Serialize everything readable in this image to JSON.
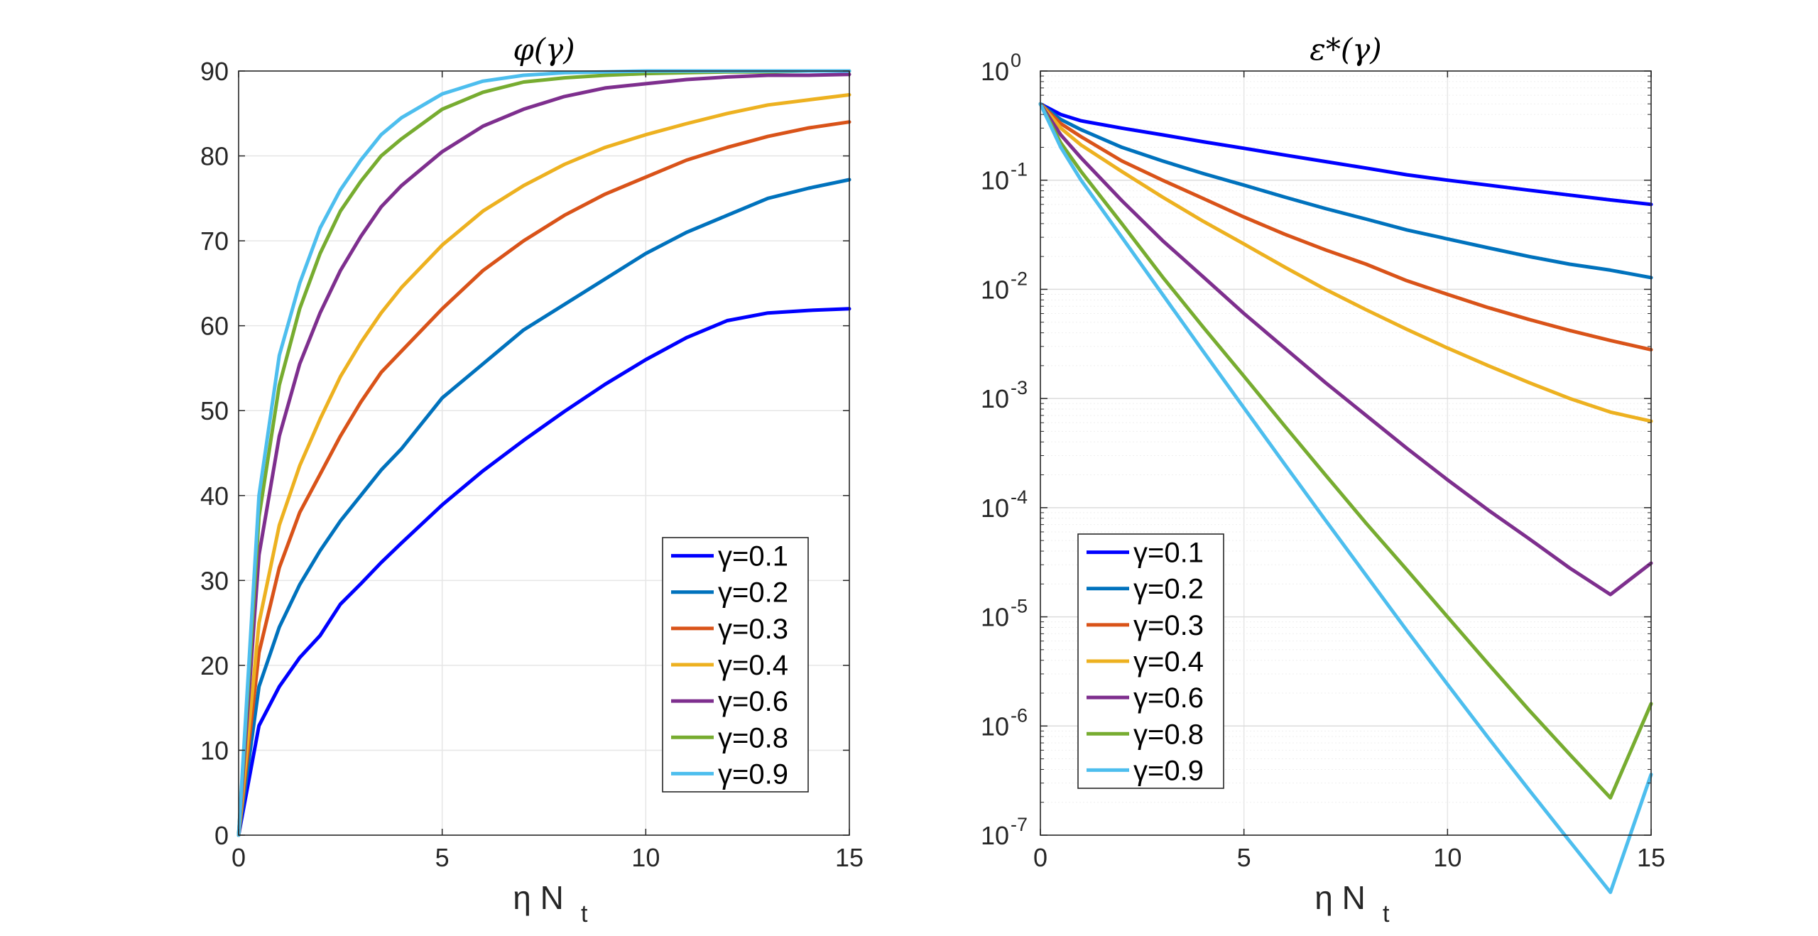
{
  "chart_data": [
    {
      "type": "line",
      "title": "φ(γ)",
      "xlabel": "η N",
      "xlabel_sub": "t",
      "ylabel": "",
      "xlim": [
        0,
        15
      ],
      "ylim": [
        0,
        90
      ],
      "yscale": "linear",
      "xticks": [
        0,
        5,
        10,
        15
      ],
      "yticks": [
        0,
        10,
        20,
        30,
        40,
        50,
        60,
        70,
        80,
        90
      ],
      "xtick_labels": [
        "0",
        "5",
        "10",
        "15"
      ],
      "ytick_labels": [
        "0",
        "10",
        "20",
        "30",
        "40",
        "50",
        "60",
        "70",
        "80",
        "90"
      ],
      "grid": true,
      "legend_position": "bottom-right",
      "x": [
        0,
        0.5,
        1,
        1.5,
        2,
        2.5,
        3,
        3.5,
        4,
        5,
        6,
        7,
        8,
        9,
        10,
        11,
        12,
        13,
        14,
        15
      ],
      "series": [
        {
          "name": "γ=0.1",
          "color": "#0000FF",
          "values": [
            0,
            12.9,
            17.5,
            20.9,
            23.5,
            27.2,
            29.6,
            32.1,
            34.4,
            38.9,
            42.9,
            46.5,
            49.9,
            53.1,
            56.0,
            58.6,
            60.6,
            61.5,
            61.8,
            62.0
          ]
        },
        {
          "name": "γ=0.2",
          "color": "#0072BD",
          "values": [
            0,
            17.5,
            24.5,
            29.5,
            33.5,
            37.0,
            40.0,
            43.0,
            45.5,
            51.5,
            55.5,
            59.5,
            62.5,
            65.5,
            68.5,
            71.0,
            73.0,
            75.0,
            76.2,
            77.2
          ]
        },
        {
          "name": "γ=0.3",
          "color": "#D95319",
          "values": [
            0,
            21.5,
            31.5,
            38.0,
            42.5,
            47.0,
            51.0,
            54.5,
            57.0,
            62.0,
            66.5,
            70.0,
            73.0,
            75.5,
            77.5,
            79.5,
            81.0,
            82.3,
            83.3,
            84.0
          ]
        },
        {
          "name": "γ=0.4",
          "color": "#EDB120",
          "values": [
            0,
            25.0,
            36.5,
            43.5,
            49.0,
            54.0,
            58.0,
            61.5,
            64.5,
            69.5,
            73.5,
            76.5,
            79.0,
            81.0,
            82.5,
            83.8,
            85.0,
            86.0,
            86.6,
            87.2
          ]
        },
        {
          "name": "γ=0.6",
          "color": "#7E2F8E",
          "values": [
            0,
            33.0,
            47.0,
            55.5,
            61.5,
            66.5,
            70.5,
            74.0,
            76.5,
            80.5,
            83.5,
            85.5,
            87.0,
            88.0,
            88.5,
            89.0,
            89.3,
            89.5,
            89.5,
            89.6
          ]
        },
        {
          "name": "γ=0.8",
          "color": "#77AC30",
          "values": [
            0,
            37.5,
            53.0,
            62.0,
            68.5,
            73.5,
            77.0,
            80.0,
            82.0,
            85.5,
            87.5,
            88.7,
            89.2,
            89.5,
            89.7,
            89.8,
            89.9,
            89.9,
            90.0,
            90.0
          ]
        },
        {
          "name": "γ=0.9",
          "color": "#4DBEEE",
          "values": [
            0,
            40.0,
            56.5,
            65.0,
            71.5,
            76.0,
            79.5,
            82.5,
            84.5,
            87.3,
            88.8,
            89.5,
            89.8,
            89.9,
            90.0,
            90.0,
            90.0,
            90.0,
            90.0,
            90.0
          ]
        }
      ]
    },
    {
      "type": "line",
      "title": "ε*(γ)",
      "xlabel": "η N",
      "xlabel_sub": "t",
      "ylabel": "",
      "xlim": [
        0,
        15
      ],
      "ylim": [
        1e-07,
        1
      ],
      "yscale": "log",
      "xticks": [
        0,
        5,
        10,
        15
      ],
      "xtick_labels": [
        "0",
        "5",
        "10",
        "15"
      ],
      "ytick_labels": [
        {
          "base": "10",
          "exp": "-7"
        },
        {
          "base": "10",
          "exp": "-6"
        },
        {
          "base": "10",
          "exp": "-5"
        },
        {
          "base": "10",
          "exp": "-4"
        },
        {
          "base": "10",
          "exp": "-3"
        },
        {
          "base": "10",
          "exp": "-2"
        },
        {
          "base": "10",
          "exp": "-1"
        },
        {
          "base": "10",
          "exp": "0"
        }
      ],
      "grid": true,
      "legend_position": "bottom-left",
      "x": [
        0,
        0.5,
        1,
        2,
        3,
        4,
        5,
        6,
        7,
        8,
        9,
        10,
        11,
        12,
        13,
        14,
        15
      ],
      "series": [
        {
          "name": "γ=0.1",
          "color": "#0000FF",
          "values": [
            0.5,
            0.4,
            0.35,
            0.3,
            0.26,
            0.225,
            0.196,
            0.17,
            0.148,
            0.129,
            0.112,
            0.1,
            0.09,
            0.081,
            0.073,
            0.066,
            0.06
          ]
        },
        {
          "name": "γ=0.2",
          "color": "#0072BD",
          "values": [
            0.5,
            0.36,
            0.29,
            0.2,
            0.15,
            0.115,
            0.09,
            0.07,
            0.055,
            0.044,
            0.035,
            0.029,
            0.024,
            0.02,
            0.017,
            0.015,
            0.0128
          ]
        },
        {
          "name": "γ=0.3",
          "color": "#D95319",
          "values": [
            0.5,
            0.33,
            0.25,
            0.15,
            0.1,
            0.068,
            0.046,
            0.032,
            0.023,
            0.017,
            0.012,
            0.009,
            0.0068,
            0.0053,
            0.0042,
            0.0034,
            0.0028
          ]
        },
        {
          "name": "γ=0.4",
          "color": "#EDB120",
          "values": [
            0.5,
            0.3,
            0.21,
            0.12,
            0.07,
            0.042,
            0.026,
            0.016,
            0.01,
            0.0065,
            0.0043,
            0.0029,
            0.002,
            0.0014,
            0.001,
            0.00075,
            0.00062
          ]
        },
        {
          "name": "γ=0.6",
          "color": "#7E2F8E",
          "values": [
            0.5,
            0.26,
            0.16,
            0.065,
            0.028,
            0.013,
            0.006,
            0.0029,
            0.0014,
            0.0007,
            0.00035,
            0.00018,
            9.5e-05,
            5.2e-05,
            2.8e-05,
            1.6e-05,
            3.1e-05
          ]
        },
        {
          "name": "γ=0.8",
          "color": "#77AC30",
          "values": [
            0.5,
            0.22,
            0.12,
            0.04,
            0.013,
            0.0045,
            0.0016,
            0.00056,
            0.0002,
            7.2e-05,
            2.7e-05,
            1e-05,
            3.7e-06,
            1.4e-06,
            5.5e-07,
            2.2e-07,
            1.6e-06
          ]
        },
        {
          "name": "γ=0.9",
          "color": "#4DBEEE",
          "values": [
            0.5,
            0.2,
            0.1,
            0.03,
            0.009,
            0.0027,
            0.00082,
            0.00025,
            7.7e-05,
            2.4e-05,
            7.5e-06,
            2.4e-06,
            7.8e-07,
            2.6e-07,
            8.8e-08,
            3e-08,
            3.6e-07
          ]
        }
      ]
    }
  ]
}
